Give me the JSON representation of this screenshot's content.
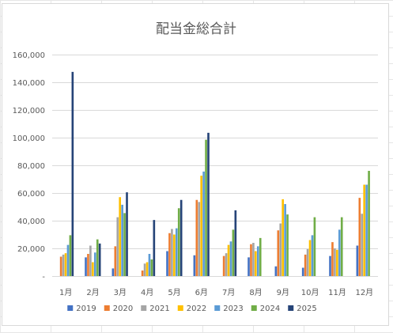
{
  "chart_data": {
    "type": "bar",
    "title": "配当金総合計",
    "categories": [
      "1月",
      "2月",
      "3月",
      "4月",
      "5月",
      "6月",
      "7月",
      "8月",
      "9月",
      "10月",
      "11月",
      "12月"
    ],
    "y_ticks": [
      "-",
      "20,000",
      "40,000",
      "60,000",
      "80,000",
      "100,000",
      "120,000",
      "140,000",
      "160,000"
    ],
    "ylim": [
      0,
      160000
    ],
    "grid": true,
    "legend_position": "bottom",
    "series": [
      {
        "name": "2019",
        "color": "#4472c4",
        "values": [
          0,
          13500,
          5500,
          0,
          18000,
          15000,
          0,
          13500,
          7000,
          6000,
          14500,
          22000
        ]
      },
      {
        "name": "2020",
        "color": "#ed7d31",
        "values": [
          14000,
          16000,
          21500,
          4000,
          31000,
          55000,
          14500,
          23000,
          33000,
          15500,
          24500,
          56500
        ]
      },
      {
        "name": "2021",
        "color": "#a5a5a5",
        "values": [
          15500,
          22000,
          42500,
          9000,
          34000,
          53500,
          16500,
          24000,
          38000,
          19500,
          20000,
          45000
        ]
      },
      {
        "name": "2022",
        "color": "#ffc000",
        "values": [
          16500,
          10000,
          57000,
          10000,
          30000,
          72500,
          22500,
          18000,
          55500,
          26000,
          19000,
          66000
        ]
      },
      {
        "name": "2023",
        "color": "#5b9bd5",
        "values": [
          22500,
          17000,
          51500,
          16000,
          34500,
          75500,
          25000,
          21500,
          52000,
          29500,
          33500,
          66000
        ]
      },
      {
        "name": "2024",
        "color": "#70ad47",
        "values": [
          29500,
          26500,
          45500,
          12000,
          49000,
          98500,
          33500,
          27500,
          44500,
          42500,
          42500,
          76000
        ]
      },
      {
        "name": "2025",
        "color": "#264478",
        "values": [
          147500,
          23500,
          60500,
          40500,
          55000,
          103500,
          47500,
          0,
          0,
          0,
          0,
          0
        ]
      }
    ]
  }
}
